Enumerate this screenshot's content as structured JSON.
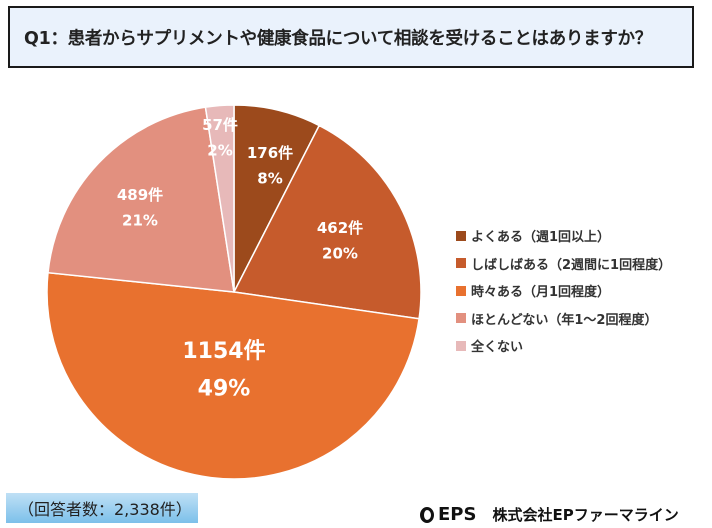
{
  "title": "Q1：患者からサプリメントや健康食品について相談を受けることはありますか？",
  "chart_data": {
    "type": "pie",
    "categories": [
      "よくある（週1回以上）",
      "しばしばある（2週間に1回程度）",
      "時々ある（月1回程度）",
      "ほとんどない（年1～2回程度）",
      "全くない"
    ],
    "values": [
      176,
      462,
      1154,
      489,
      57
    ],
    "count_labels": [
      "176件",
      "462件",
      "1154件",
      "489件",
      "57件"
    ],
    "percent_labels": [
      "8%",
      "20%",
      "49%",
      "21%",
      "2%"
    ],
    "colors": [
      "#9c4a1c",
      "#c65b2c",
      "#e8712f",
      "#e2907f",
      "#e7b9b9"
    ],
    "legend_position": "right",
    "start": "top, clockwise"
  },
  "respondents": "（回答者数：2,338件）",
  "logo": {
    "mark": "EPS",
    "company": "株式会社EPファーマライン"
  }
}
